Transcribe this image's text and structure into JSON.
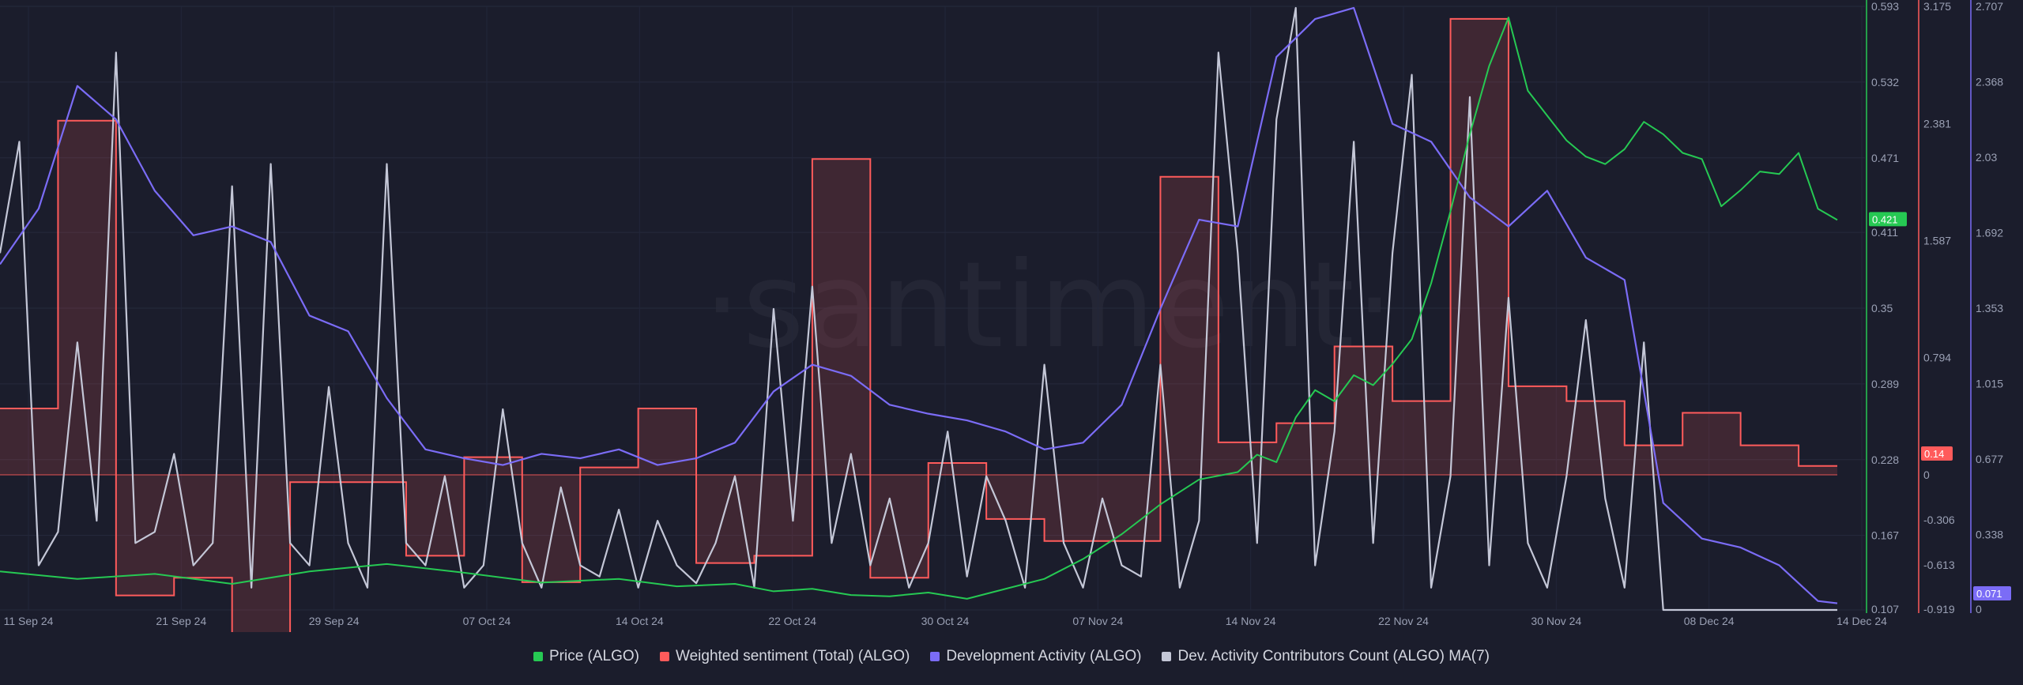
{
  "watermark": "·santiment·",
  "legend": [
    {
      "label": "Price (ALGO)",
      "color": "#26c953"
    },
    {
      "label": "Weighted sentiment (Total) (ALGO)",
      "color": "#ff5b5b"
    },
    {
      "label": "Development Activity (ALGO)",
      "color": "#7b6cf6"
    },
    {
      "label": "Dev. Activity Contributors Count (ALGO) MA(7)",
      "color": "#c4c7d7"
    }
  ],
  "chart_data": {
    "type": "line",
    "x_range": [
      "2024-09-10",
      "2024-12-14"
    ],
    "x_ticks": [
      "11 Sep 24",
      "21 Sep 24",
      "29 Sep 24",
      "07 Oct 24",
      "14 Oct 24",
      "22 Oct 24",
      "30 Oct 24",
      "07 Nov 24",
      "14 Nov 24",
      "22 Nov 24",
      "30 Nov 24",
      "08 Dec 24",
      "14 Dec 24"
    ],
    "axes": {
      "price": {
        "ticks": [
          "0.593",
          "0.532",
          "0.471",
          "0.411",
          "0.35",
          "0.289",
          "0.228",
          "0.167",
          "0.107"
        ],
        "range": [
          0.107,
          0.593
        ],
        "current": "0.421",
        "color": "#26c953"
      },
      "sentiment": {
        "ticks": [
          "3.175",
          "2.381",
          "1.587",
          "0.794",
          "0",
          "-0.306",
          "-0.613",
          "-0.919"
        ],
        "current": "0.14",
        "color": "#ff5b5b"
      },
      "dev_activity": {
        "ticks": [
          "2.707",
          "2.368",
          "2.03",
          "1.692",
          "1.353",
          "1.015",
          "0.677",
          "0.338",
          "0"
        ],
        "range": [
          0,
          2.707
        ],
        "current": "0.071",
        "color": "#7b6cf6"
      }
    },
    "series": [
      {
        "name": "Price (ALGO)",
        "axis": "price",
        "x": [
          0,
          4,
          8,
          12,
          16,
          20,
          24,
          28,
          32,
          35,
          38,
          40,
          42,
          44,
          46,
          48,
          50,
          52,
          54,
          56,
          58,
          60,
          62,
          64,
          65,
          66,
          67,
          68,
          69,
          70,
          71,
          72,
          73,
          74,
          75,
          76,
          77,
          78,
          79,
          80,
          81,
          82,
          83,
          84,
          85,
          86,
          87,
          88,
          89,
          90,
          91,
          92,
          93,
          94,
          95
        ],
        "values": [
          0.138,
          0.132,
          0.136,
          0.128,
          0.138,
          0.144,
          0.137,
          0.129,
          0.132,
          0.126,
          0.128,
          0.122,
          0.124,
          0.119,
          0.118,
          0.121,
          0.116,
          0.124,
          0.132,
          0.148,
          0.168,
          0.192,
          0.212,
          0.218,
          0.232,
          0.226,
          0.262,
          0.284,
          0.275,
          0.296,
          0.288,
          0.305,
          0.325,
          0.37,
          0.428,
          0.49,
          0.545,
          0.584,
          0.525,
          0.505,
          0.485,
          0.472,
          0.466,
          0.478,
          0.5,
          0.49,
          0.475,
          0.47,
          0.432,
          0.445,
          0.46,
          0.458,
          0.475,
          0.43,
          0.421
        ]
      },
      {
        "name": "Weighted sentiment (Total) (ALGO)",
        "axis": "sentiment",
        "step": true,
        "x": [
          0,
          3,
          6,
          9,
          12,
          15,
          18,
          21,
          24,
          27,
          30,
          33,
          36,
          39,
          42,
          45,
          48,
          51,
          54,
          57,
          60,
          63,
          66,
          69,
          72,
          75,
          78,
          81,
          84,
          87,
          90,
          93,
          95
        ],
        "values": [
          0.45,
          2.4,
          -0.82,
          -0.7,
          -1.35,
          -0.05,
          -0.05,
          -0.55,
          0.12,
          -0.73,
          0.05,
          0.45,
          -0.6,
          -0.55,
          2.14,
          -0.7,
          0.08,
          -0.3,
          -0.45,
          -0.45,
          2.02,
          0.22,
          0.35,
          0.87,
          0.5,
          3.09,
          0.6,
          0.5,
          0.2,
          0.42,
          0.2,
          0.06,
          0.06
        ]
      },
      {
        "name": "Development Activity (ALGO)",
        "axis": "dev_activity",
        "x": [
          0,
          2,
          4,
          6,
          8,
          10,
          12,
          14,
          16,
          18,
          20,
          22,
          24,
          26,
          28,
          30,
          32,
          34,
          36,
          38,
          40,
          42,
          44,
          46,
          48,
          50,
          52,
          54,
          56,
          58,
          60,
          62,
          64,
          66,
          68,
          70,
          72,
          74,
          76,
          78,
          80,
          82,
          84,
          86,
          88,
          90,
          92,
          94,
          95
        ],
        "values": [
          1.55,
          1.8,
          2.35,
          2.2,
          1.88,
          1.68,
          1.72,
          1.65,
          1.32,
          1.25,
          0.95,
          0.72,
          0.68,
          0.65,
          0.7,
          0.68,
          0.72,
          0.65,
          0.68,
          0.75,
          0.98,
          1.1,
          1.05,
          0.92,
          0.88,
          0.85,
          0.8,
          0.72,
          0.75,
          0.92,
          1.35,
          1.75,
          1.72,
          2.48,
          2.65,
          2.7,
          2.18,
          2.1,
          1.85,
          1.72,
          1.88,
          1.58,
          1.48,
          0.48,
          0.32,
          0.28,
          0.2,
          0.04,
          0.03
        ]
      },
      {
        "name": "Dev. Activity Contributors Count (ALGO) MA(7)",
        "axis": "dev_activity",
        "x": [
          0,
          1,
          2,
          3,
          4,
          5,
          6,
          7,
          8,
          9,
          10,
          11,
          12,
          13,
          14,
          15,
          16,
          17,
          18,
          19,
          20,
          21,
          22,
          23,
          24,
          25,
          26,
          27,
          28,
          29,
          30,
          31,
          32,
          33,
          34,
          35,
          36,
          37,
          38,
          39,
          40,
          41,
          42,
          43,
          44,
          45,
          46,
          47,
          48,
          49,
          50,
          51,
          52,
          53,
          54,
          55,
          56,
          57,
          58,
          59,
          60,
          61,
          62,
          63,
          64,
          65,
          66,
          67,
          68,
          69,
          70,
          71,
          72,
          73,
          74,
          75,
          76,
          77,
          78,
          79,
          80,
          81,
          82,
          83,
          84,
          85,
          86,
          87,
          88,
          89,
          90,
          91,
          92,
          93,
          94,
          95
        ],
        "values": [
          1.6,
          2.1,
          0.2,
          0.35,
          1.2,
          0.4,
          2.5,
          0.3,
          0.35,
          0.7,
          0.2,
          0.3,
          1.9,
          0.1,
          2.0,
          0.3,
          0.2,
          1.0,
          0.3,
          0.1,
          2.0,
          0.3,
          0.2,
          0.6,
          0.1,
          0.2,
          0.9,
          0.3,
          0.1,
          0.55,
          0.2,
          0.15,
          0.45,
          0.1,
          0.4,
          0.2,
          0.12,
          0.3,
          0.6,
          0.1,
          1.35,
          0.4,
          1.45,
          0.3,
          0.7,
          0.2,
          0.5,
          0.1,
          0.3,
          0.8,
          0.15,
          0.6,
          0.4,
          0.1,
          1.1,
          0.3,
          0.1,
          0.5,
          0.2,
          0.15,
          1.1,
          0.1,
          0.4,
          2.5,
          1.6,
          0.3,
          2.2,
          2.7,
          0.2,
          0.8,
          2.1,
          0.3,
          1.6,
          2.4,
          0.1,
          0.6,
          2.3,
          0.2,
          1.4,
          0.3,
          0.1,
          0.6,
          1.3,
          0.5,
          0.1,
          1.2,
          0.0,
          0.0,
          0.0,
          0.0,
          0.0,
          0.0,
          0.0,
          0.0,
          0.0,
          0.0
        ]
      }
    ],
    "grid": true,
    "legend_position": "bottom-center"
  }
}
